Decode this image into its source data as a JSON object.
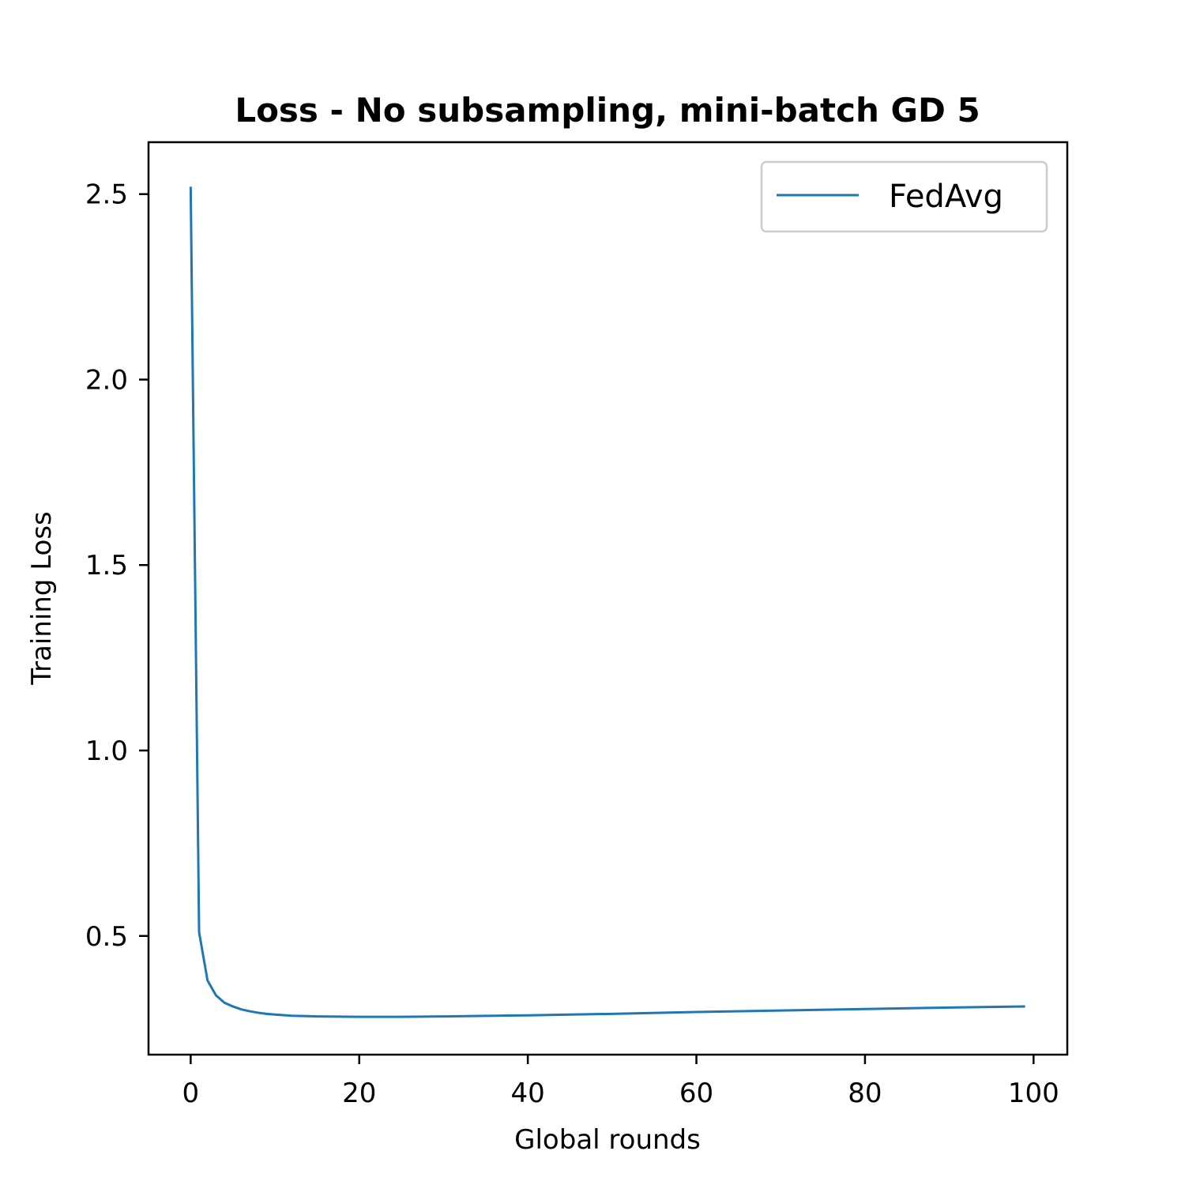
{
  "chart_data": {
    "type": "line",
    "title": "Loss - No subsampling, mini-batch GD 5",
    "xlabel": "Global rounds",
    "ylabel": "Training Loss",
    "xlim": [
      -5,
      104
    ],
    "ylim": [
      0.18,
      2.64
    ],
    "xticks": [
      0,
      20,
      40,
      60,
      80,
      100
    ],
    "xtick_labels": [
      "0",
      "20",
      "40",
      "60",
      "80",
      "100"
    ],
    "yticks": [
      0.5,
      1.0,
      1.5,
      2.0,
      2.5
    ],
    "ytick_labels": [
      "0.5",
      "1.0",
      "1.5",
      "2.0",
      "2.5"
    ],
    "grid": false,
    "legend": {
      "position": "top-right"
    },
    "series": [
      {
        "name": "FedAvg",
        "color": "#1f77b4",
        "points": [
          [
            0,
            2.52
          ],
          [
            1,
            0.51
          ],
          [
            2,
            0.38
          ],
          [
            3,
            0.34
          ],
          [
            4,
            0.32
          ],
          [
            5,
            0.31
          ],
          [
            6,
            0.302
          ],
          [
            7,
            0.297
          ],
          [
            8,
            0.293
          ],
          [
            9,
            0.29
          ],
          [
            10,
            0.288
          ],
          [
            12,
            0.285
          ],
          [
            15,
            0.283
          ],
          [
            20,
            0.282
          ],
          [
            25,
            0.282
          ],
          [
            30,
            0.283
          ],
          [
            40,
            0.286
          ],
          [
            50,
            0.29
          ],
          [
            60,
            0.295
          ],
          [
            70,
            0.299
          ],
          [
            80,
            0.303
          ],
          [
            90,
            0.307
          ],
          [
            99,
            0.31
          ]
        ]
      }
    ]
  }
}
